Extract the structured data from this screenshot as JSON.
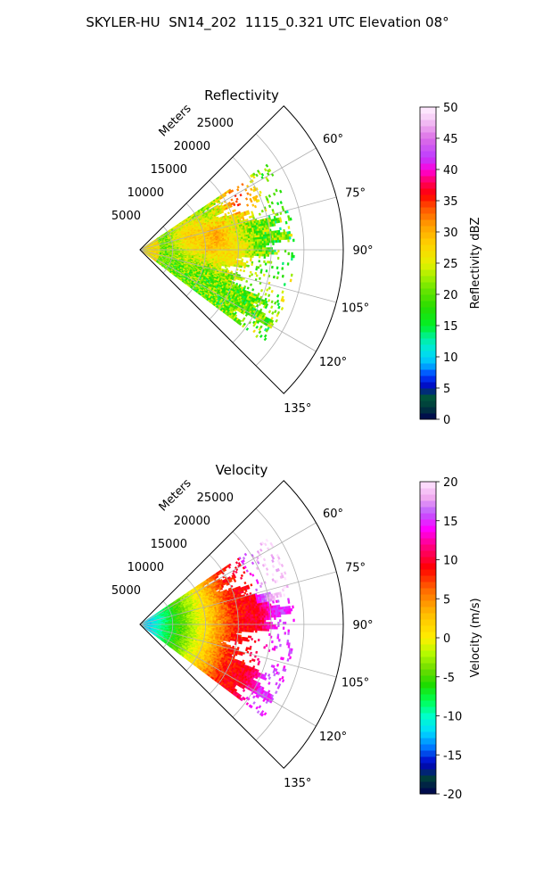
{
  "figure_title": "SKYLER-HU  SN14_202  1115_0.321 UTC Elevation 08°",
  "chart_data": [
    {
      "type": "heatmap",
      "subtype": "polar-sector",
      "title": "Reflectivity",
      "radial_label": "Meters",
      "radial_ticks": [
        "5000",
        "10000",
        "15000",
        "20000",
        "25000"
      ],
      "radial_values": [
        5000,
        10000,
        15000,
        20000,
        25000
      ],
      "rmax": 31000,
      "angle_ticks": [
        "60°",
        "75°",
        "90°",
        "105°",
        "120°",
        "135°"
      ],
      "angle_values": [
        60,
        75,
        90,
        105,
        120,
        135
      ],
      "theta_range": [
        45,
        135
      ],
      "colorbar": {
        "label": "Reflectivity dBZ",
        "range": [
          0,
          50
        ],
        "ticks": [
          "0",
          "5",
          "10",
          "15",
          "20",
          "25",
          "30",
          "35",
          "40",
          "45",
          "50"
        ],
        "tick_values": [
          0,
          5,
          10,
          15,
          20,
          25,
          30,
          35,
          40,
          45,
          50
        ]
      },
      "field": "reflectivity",
      "data_extent_m": 22000,
      "data_theta_range": [
        56,
        127
      ],
      "typical_range": [
        14,
        26
      ],
      "hotspots": [
        {
          "r": 17000,
          "theta": 62,
          "value": 36
        },
        {
          "r": 11500,
          "theta": 82,
          "value": 33
        },
        {
          "r": 8000,
          "theta": 75,
          "value": 28
        },
        {
          "r": 14000,
          "theta": 92,
          "value": 27
        }
      ]
    },
    {
      "type": "heatmap",
      "subtype": "polar-sector",
      "title": "Velocity",
      "radial_label": "Meters",
      "radial_ticks": [
        "5000",
        "10000",
        "15000",
        "20000",
        "25000"
      ],
      "radial_values": [
        5000,
        10000,
        15000,
        20000,
        25000
      ],
      "rmax": 31000,
      "angle_ticks": [
        "60°",
        "75°",
        "90°",
        "105°",
        "120°",
        "135°"
      ],
      "angle_values": [
        60,
        75,
        90,
        105,
        120,
        135
      ],
      "theta_range": [
        45,
        135
      ],
      "colorbar": {
        "label": "Velocity (m/s)",
        "range": [
          -20,
          20
        ],
        "ticks": [
          "-20",
          "-15",
          "-10",
          "-5",
          "0",
          "5",
          "10",
          "15",
          "20"
        ],
        "tick_values": [
          -20,
          -15,
          -10,
          -5,
          0,
          5,
          10,
          15,
          20
        ]
      },
      "field": "velocity",
      "data_extent_m": 22000,
      "data_theta_range": [
        56,
        127
      ],
      "value_by_range": [
        {
          "r": 1500,
          "value": -12
        },
        {
          "r": 6000,
          "value": -5
        },
        {
          "r": 10000,
          "value": 1
        },
        {
          "r": 14000,
          "value": 8
        },
        {
          "r": 18000,
          "value": 10
        },
        {
          "r": 21000,
          "value": 15
        }
      ]
    }
  ]
}
